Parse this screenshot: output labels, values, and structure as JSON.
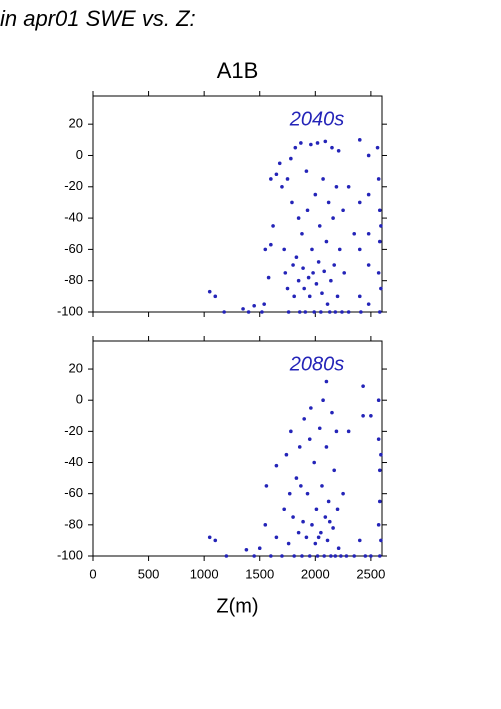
{
  "page_title": "in apr01 SWE vs. Z:",
  "chart_data": [
    {
      "type": "scatter",
      "title": "A1B",
      "annotation": "2040s",
      "color": "#2424b8",
      "xlim": [
        0,
        2600
      ],
      "xticks": [
        0,
        500,
        1000,
        1500,
        2000,
        2500
      ],
      "show_xtick_labels": false,
      "ylim": [
        -100,
        38
      ],
      "yticks": [
        -100,
        -80,
        -60,
        -40,
        -20,
        0,
        20
      ],
      "x": [
        1050,
        1100,
        1180,
        1350,
        1400,
        1450,
        1520,
        1540,
        1550,
        1600,
        1580,
        1600,
        1650,
        1620,
        1680,
        1700,
        1720,
        1730,
        1750,
        1760,
        1780,
        1790,
        1800,
        1810,
        1820,
        1830,
        1850,
        1860,
        1870,
        1880,
        1890,
        1900,
        1910,
        1920,
        1930,
        1940,
        1950,
        1960,
        1970,
        1980,
        1990,
        2000,
        2010,
        2020,
        2030,
        2040,
        2050,
        2060,
        2070,
        2080,
        2090,
        2100,
        2110,
        2120,
        2130,
        2140,
        2150,
        2160,
        2170,
        2180,
        2190,
        2200,
        2210,
        2220,
        2240,
        2250,
        2260,
        2300,
        2300,
        2350,
        2400,
        2400,
        2400,
        2400,
        2410,
        2480,
        2480,
        2480,
        2480,
        2480,
        2560,
        2570,
        2580,
        2580,
        2570,
        2580,
        2590,
        2590,
        1750,
        1850
      ],
      "values": [
        -87,
        -90,
        -100,
        -98,
        -100,
        -96,
        -100,
        -95,
        -60,
        -57,
        -78,
        -15,
        -12,
        -45,
        -5,
        -20,
        -60,
        -75,
        -85,
        -100,
        -2,
        -30,
        -70,
        -90,
        5,
        -65,
        -80,
        -100,
        8,
        -50,
        -72,
        -85,
        -100,
        -10,
        -35,
        -78,
        -90,
        7,
        -60,
        -75,
        -100,
        -25,
        -82,
        8,
        -68,
        -45,
        -100,
        -88,
        -15,
        -74,
        9,
        -55,
        -95,
        -30,
        -100,
        -80,
        5,
        -40,
        -70,
        -100,
        -20,
        -90,
        3,
        -60,
        -100,
        -35,
        -75,
        -20,
        -100,
        -50,
        10,
        -30,
        -60,
        -90,
        -100,
        0,
        -25,
        -50,
        -70,
        -95,
        5,
        -15,
        -35,
        -55,
        -75,
        -100,
        -45,
        -85,
        -15,
        -40
      ]
    },
    {
      "type": "scatter",
      "annotation": "2080s",
      "xlabel": "Z(m)",
      "color": "#2424b8",
      "xlim": [
        0,
        2600
      ],
      "xticks": [
        0,
        500,
        1000,
        1500,
        2000,
        2500
      ],
      "show_xtick_labels": true,
      "ylim": [
        -100,
        38
      ],
      "yticks": [
        -100,
        -80,
        -60,
        -40,
        -20,
        0,
        20
      ],
      "x": [
        1050,
        1100,
        1200,
        1380,
        1450,
        1500,
        1550,
        1560,
        1600,
        1650,
        1650,
        1700,
        1720,
        1740,
        1760,
        1780,
        1800,
        1810,
        1830,
        1850,
        1860,
        1880,
        1890,
        1900,
        1920,
        1930,
        1950,
        1960,
        1970,
        1990,
        2000,
        2010,
        2020,
        2040,
        2050,
        2060,
        2070,
        2080,
        2090,
        2100,
        2110,
        2120,
        2140,
        2150,
        2160,
        2170,
        2180,
        2190,
        2200,
        2210,
        2230,
        2250,
        2280,
        2300,
        2350,
        2400,
        2430,
        2430,
        2450,
        2500,
        2500,
        2570,
        2570,
        2580,
        2580,
        2570,
        2580,
        2590,
        2590,
        2100,
        1950,
        1870,
        1770,
        2030,
        2130
      ],
      "values": [
        -88,
        -90,
        -100,
        -96,
        -100,
        -95,
        -80,
        -55,
        -100,
        -88,
        -42,
        -100,
        -70,
        -35,
        -92,
        -20,
        -75,
        -100,
        -50,
        -85,
        -30,
        -100,
        -78,
        -12,
        -88,
        -60,
        -100,
        -5,
        -80,
        -40,
        -92,
        -70,
        -100,
        -18,
        -85,
        -55,
        0,
        -100,
        -75,
        -30,
        -90,
        -65,
        -100,
        -8,
        -82,
        -45,
        -100,
        -20,
        -70,
        -95,
        -100,
        -60,
        -100,
        -20,
        -100,
        -90,
        9,
        -10,
        -100,
        -10,
        -100,
        0,
        -25,
        -45,
        -65,
        -80,
        -100,
        -35,
        -90,
        12,
        -25,
        -55,
        -60,
        -88,
        -78
      ]
    }
  ]
}
